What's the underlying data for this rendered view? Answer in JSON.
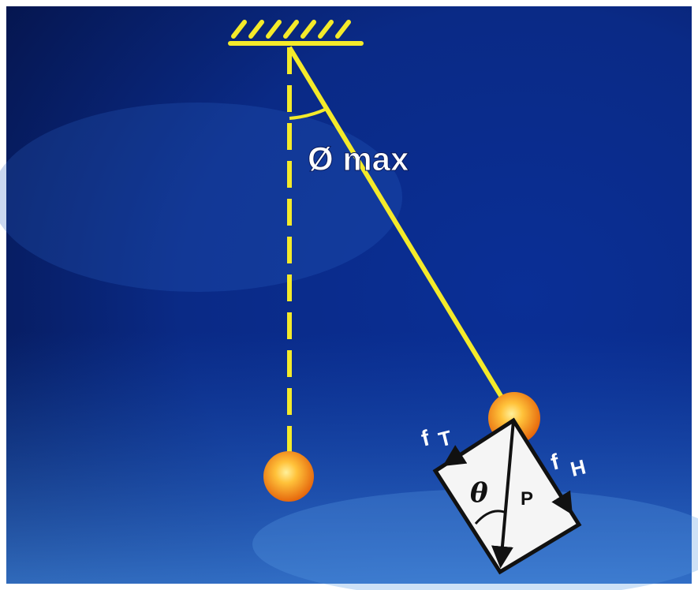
{
  "labels": {
    "angle": "Ø max",
    "f_t": "f",
    "f_t_sub": "T",
    "f_h": "f",
    "f_h_sub": "H",
    "p": "P",
    "theta": "θ"
  },
  "colors": {
    "background_dark": "#06185e",
    "background_mid": "#0a3aa8",
    "background_light": "#2f6fd0",
    "string": "#f4ea2a",
    "bob_center": "#ffe27a",
    "bob_edge": "#e86a08",
    "box_fill": "#f5f5f5",
    "box_stroke": "#111111",
    "label": "#ffffff"
  },
  "icons": {
    "support": "hatched-ceiling-icon",
    "bob": "pendulum-bob-icon"
  }
}
